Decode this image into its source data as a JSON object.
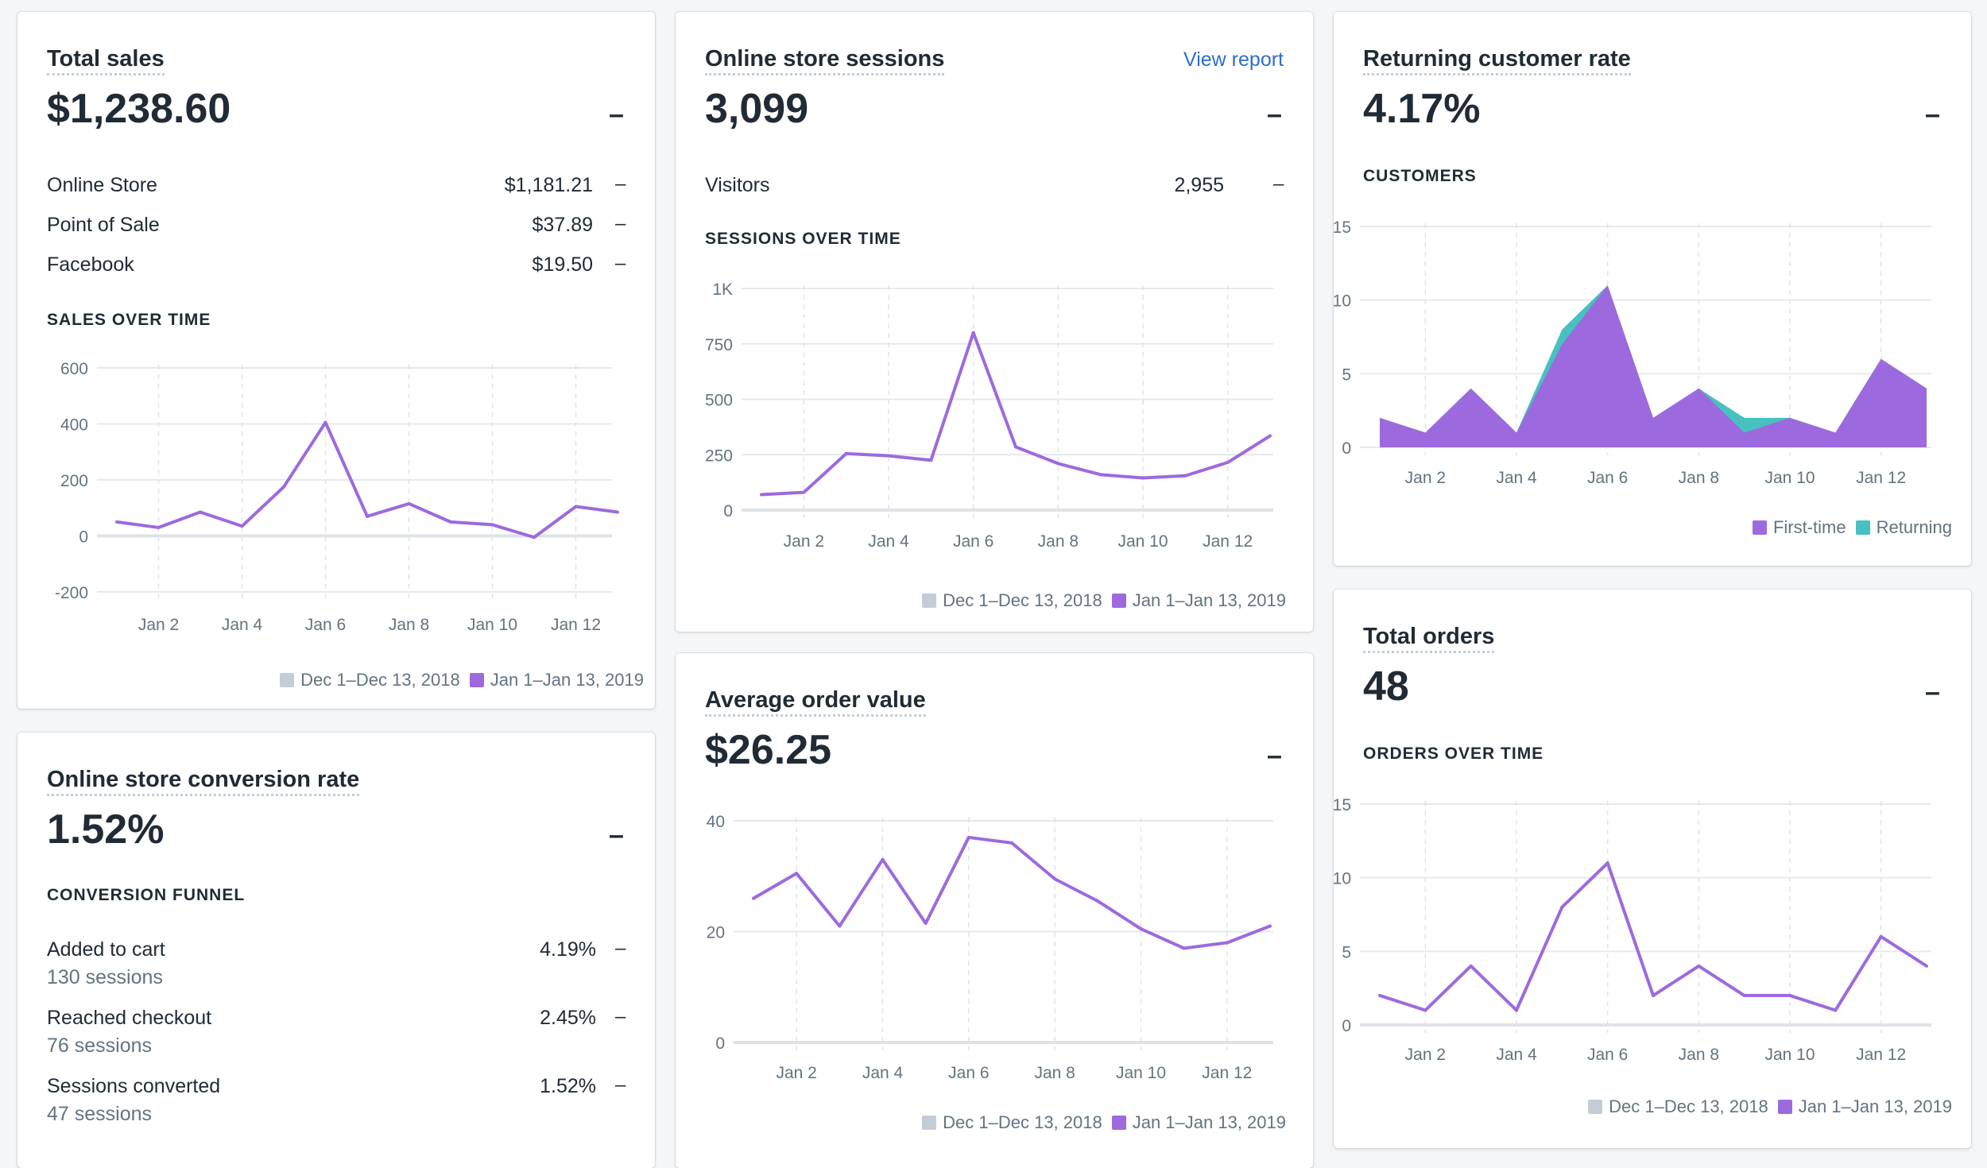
{
  "colors": {
    "current": "#9c6ade",
    "previous": "#dfe3e8",
    "previous_swatch": "#c4cdd5",
    "returning": "#47c1bf",
    "grid": "#e6e9ec",
    "axis_text": "#637381",
    "link": "#2c6ecb"
  },
  "legend": {
    "previous_label": "Dec 1–Dec 13, 2018",
    "current_label": "Jan 1–Jan 13, 2019",
    "first_time_label": "First-time",
    "returning_label": "Returning"
  },
  "total_sales": {
    "title": "Total sales",
    "value": "$1,238.60",
    "change": "–",
    "rows": [
      {
        "label": "Online Store",
        "value": "$1,181.21",
        "change": "–"
      },
      {
        "label": "Point of Sale",
        "value": "$37.89",
        "change": "–"
      },
      {
        "label": "Facebook",
        "value": "$19.50",
        "change": "–"
      }
    ],
    "section": "SALES OVER TIME"
  },
  "sessions": {
    "title": "Online store sessions",
    "link": "View report",
    "value": "3,099",
    "change": "–",
    "rows": [
      {
        "label": "Visitors",
        "value": "2,955",
        "change": "–"
      }
    ],
    "section": "SESSIONS OVER TIME"
  },
  "returning": {
    "title": "Returning customer rate",
    "value": "4.17%",
    "change": "–",
    "section": "CUSTOMERS"
  },
  "conversion": {
    "title": "Online store conversion rate",
    "value": "1.52%",
    "change": "–",
    "section": "CONVERSION FUNNEL",
    "rows": [
      {
        "label": "Added to cart",
        "sub": "130 sessions",
        "value": "4.19%",
        "change": "–"
      },
      {
        "label": "Reached checkout",
        "sub": "76 sessions",
        "value": "2.45%",
        "change": "–"
      },
      {
        "label": "Sessions converted",
        "sub": "47 sessions",
        "value": "1.52%",
        "change": "–"
      }
    ]
  },
  "aov": {
    "title": "Average order value",
    "value": "$26.25",
    "change": "–"
  },
  "orders": {
    "title": "Total orders",
    "value": "48",
    "change": "–",
    "section": "ORDERS OVER TIME"
  },
  "chart_data": [
    {
      "id": "sales",
      "type": "line",
      "title": "SALES OVER TIME",
      "x": [
        1,
        2,
        3,
        4,
        5,
        6,
        7,
        8,
        9,
        10,
        11,
        12,
        13
      ],
      "xticks": [
        2,
        4,
        6,
        8,
        10,
        12
      ],
      "xtick_labels": [
        "Jan 2",
        "Jan 4",
        "Jan 6",
        "Jan 8",
        "Jan 10",
        "Jan 12"
      ],
      "yticks": [
        -200,
        0,
        200,
        400,
        600
      ],
      "ytick_labels": [
        "-200",
        "0",
        "200",
        "400",
        "600"
      ],
      "ylim": [
        -200,
        600
      ],
      "series": [
        {
          "name": "Dec 1–Dec 13, 2018",
          "values": [
            0,
            0,
            0,
            0,
            0,
            0,
            0,
            0,
            0,
            0,
            0,
            0,
            0
          ]
        },
        {
          "name": "Jan 1–Jan 13, 2019",
          "values": [
            50,
            30,
            85,
            35,
            175,
            405,
            70,
            115,
            50,
            40,
            -5,
            105,
            85
          ]
        }
      ]
    },
    {
      "id": "sessions",
      "type": "line",
      "title": "SESSIONS OVER TIME",
      "x": [
        1,
        2,
        3,
        4,
        5,
        6,
        7,
        8,
        9,
        10,
        11,
        12,
        13
      ],
      "xticks": [
        2,
        4,
        6,
        8,
        10,
        12
      ],
      "xtick_labels": [
        "Jan 2",
        "Jan 4",
        "Jan 6",
        "Jan 8",
        "Jan 10",
        "Jan 12"
      ],
      "yticks": [
        0,
        250,
        500,
        750,
        1000
      ],
      "ytick_labels": [
        "0",
        "250",
        "500",
        "750",
        "1K"
      ],
      "ylim": [
        0,
        1000
      ],
      "series": [
        {
          "name": "Dec 1–Dec 13, 2018",
          "values": [
            0,
            0,
            0,
            0,
            0,
            0,
            0,
            0,
            0,
            0,
            0,
            0,
            0
          ]
        },
        {
          "name": "Jan 1–Jan 13, 2019",
          "values": [
            70,
            80,
            255,
            245,
            225,
            800,
            285,
            210,
            160,
            145,
            155,
            215,
            335
          ]
        }
      ]
    },
    {
      "id": "customers",
      "type": "area",
      "title": "CUSTOMERS",
      "x": [
        1,
        2,
        3,
        4,
        5,
        6,
        7,
        8,
        9,
        10,
        11,
        12,
        13
      ],
      "xticks": [
        2,
        4,
        6,
        8,
        10,
        12
      ],
      "xtick_labels": [
        "Jan 2",
        "Jan 4",
        "Jan 6",
        "Jan 8",
        "Jan 10",
        "Jan 12"
      ],
      "yticks": [
        0,
        5,
        10,
        15
      ],
      "ytick_labels": [
        "0",
        "5",
        "10",
        "15"
      ],
      "ylim": [
        0,
        15
      ],
      "series": [
        {
          "name": "First-time",
          "values": [
            2,
            1,
            4,
            1,
            7,
            11,
            2,
            4,
            1,
            2,
            1,
            6,
            4
          ]
        },
        {
          "name": "Returning",
          "values": [
            0,
            0,
            0,
            0,
            1,
            0,
            0,
            0,
            1,
            0,
            0,
            0,
            0
          ]
        }
      ]
    },
    {
      "id": "aov",
      "type": "line",
      "title": "Average order value",
      "x": [
        1,
        2,
        3,
        4,
        5,
        6,
        7,
        8,
        9,
        10,
        11,
        12,
        13
      ],
      "xticks": [
        2,
        4,
        6,
        8,
        10,
        12
      ],
      "xtick_labels": [
        "Jan 2",
        "Jan 4",
        "Jan 6",
        "Jan 8",
        "Jan 10",
        "Jan 12"
      ],
      "yticks": [
        0,
        20,
        40
      ],
      "ytick_labels": [
        "0",
        "20",
        "40"
      ],
      "ylim": [
        0,
        40
      ],
      "series": [
        {
          "name": "Dec 1–Dec 13, 2018",
          "values": [
            0,
            0,
            0,
            0,
            0,
            0,
            0,
            0,
            0,
            0,
            0,
            0,
            0
          ]
        },
        {
          "name": "Jan 1–Jan 13, 2019",
          "values": [
            26,
            30.5,
            21,
            33,
            21.5,
            37,
            36,
            29.5,
            25.5,
            20.5,
            17,
            18,
            21
          ]
        }
      ]
    },
    {
      "id": "orders",
      "type": "line",
      "title": "ORDERS OVER TIME",
      "x": [
        1,
        2,
        3,
        4,
        5,
        6,
        7,
        8,
        9,
        10,
        11,
        12,
        13
      ],
      "xticks": [
        2,
        4,
        6,
        8,
        10,
        12
      ],
      "xtick_labels": [
        "Jan 2",
        "Jan 4",
        "Jan 6",
        "Jan 8",
        "Jan 10",
        "Jan 12"
      ],
      "yticks": [
        0,
        5,
        10,
        15
      ],
      "ytick_labels": [
        "0",
        "5",
        "10",
        "15"
      ],
      "ylim": [
        0,
        15
      ],
      "series": [
        {
          "name": "Dec 1–Dec 13, 2018",
          "values": [
            0,
            0,
            0,
            0,
            0,
            0,
            0,
            0,
            0,
            0,
            0,
            0,
            0
          ]
        },
        {
          "name": "Jan 1–Jan 13, 2019",
          "values": [
            2,
            1,
            4,
            1,
            8,
            11,
            2,
            4,
            2,
            2,
            1,
            6,
            4
          ]
        }
      ]
    }
  ]
}
